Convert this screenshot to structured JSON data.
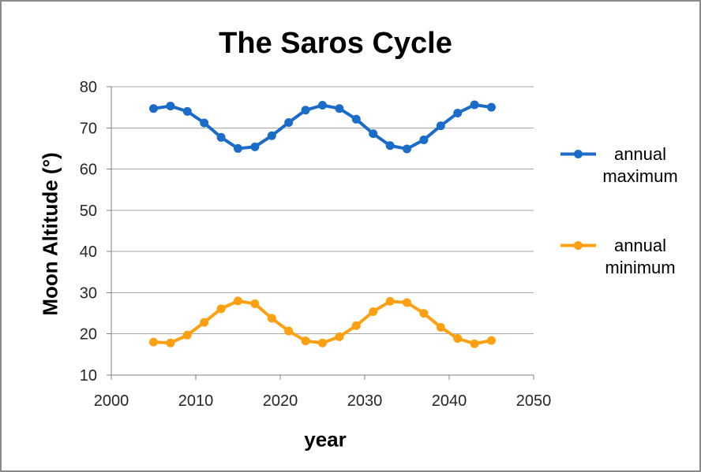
{
  "frame": {
    "border_color": "#8a8a8a",
    "background": "#ffffff"
  },
  "chart": {
    "title": "The Saros Cycle",
    "x_axis_label": "year",
    "y_axis_label": "Moon Altitude (°)"
  },
  "legend": {
    "position": "right-center",
    "items": [
      {
        "name": "annual maximum",
        "label_line1": "annual",
        "label_line2": "maximum",
        "color": "#1a6cc8"
      },
      {
        "name": "annual minimum",
        "label_line1": "annual",
        "label_line2": "minimum",
        "color": "#ffa012"
      }
    ]
  },
  "axis_style": {
    "gridline_color": "#a6a6a6",
    "axis_color": "#808080",
    "tick_label_color": "#262626"
  },
  "chart_data": {
    "type": "line",
    "title": "The Saros Cycle",
    "xlabel": "year",
    "ylabel": "Moon Altitude (°)",
    "x": [
      2005,
      2007,
      2009,
      2011,
      2013,
      2015,
      2017,
      2019,
      2021,
      2023,
      2025,
      2027,
      2029,
      2031,
      2033,
      2035,
      2037,
      2039,
      2041,
      2043,
      2045
    ],
    "series": [
      {
        "name": "annual maximum",
        "color": "#1a6cc8",
        "marker": "circle",
        "values": [
          74.7,
          75.3,
          74.0,
          71.2,
          67.7,
          65.0,
          65.4,
          68.1,
          71.3,
          74.3,
          75.5,
          74.7,
          72.1,
          68.6,
          65.7,
          64.9,
          67.1,
          70.5,
          73.6,
          75.6,
          75.0
        ]
      },
      {
        "name": "annual minimum",
        "color": "#ffa012",
        "marker": "circle",
        "values": [
          18.0,
          17.8,
          19.7,
          22.8,
          26.1,
          28.0,
          27.3,
          23.8,
          20.7,
          18.3,
          17.8,
          19.3,
          22.0,
          25.4,
          27.9,
          27.6,
          25.0,
          21.6,
          18.9,
          17.6,
          18.4
        ]
      }
    ],
    "xlim": [
      2000,
      2050
    ],
    "ylim": [
      10,
      80
    ],
    "x_ticks": [
      2000,
      2010,
      2020,
      2030,
      2040,
      2050
    ],
    "y_ticks": [
      10,
      20,
      30,
      40,
      50,
      60,
      70,
      80
    ],
    "grid": "horizontal-only",
    "legend_position": "right-center"
  }
}
